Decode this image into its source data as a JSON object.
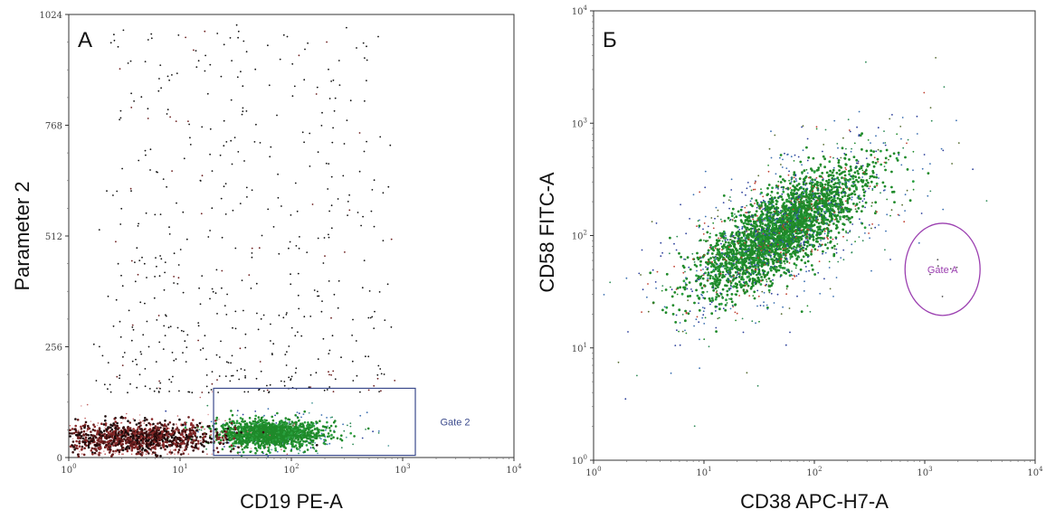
{
  "chart_data": [
    {
      "type": "scatter",
      "panel_label": "A",
      "xlabel": "CD19 PE-A",
      "ylabel": "Parameter 2",
      "x_scale": "log",
      "y_scale": "linear",
      "xlim": [
        1,
        10000
      ],
      "ylim": [
        0,
        1024
      ],
      "x_ticks": [
        {
          "base": "10",
          "exp": "0",
          "value": 1
        },
        {
          "base": "10",
          "exp": "1",
          "value": 10
        },
        {
          "base": "10",
          "exp": "2",
          "value": 100
        },
        {
          "base": "10",
          "exp": "3",
          "value": 1000
        },
        {
          "base": "10",
          "exp": "4",
          "value": 10000
        }
      ],
      "y_ticks": [
        {
          "label": "0",
          "value": 0
        },
        {
          "label": "256",
          "value": 256
        },
        {
          "label": "512",
          "value": 512
        },
        {
          "label": "768",
          "value": 768
        },
        {
          "label": "1024",
          "value": 1024
        }
      ],
      "gates": [
        {
          "name": "Gate 2",
          "shape": "rectangle",
          "x_range": [
            20,
            1300
          ],
          "y_range": [
            5,
            160
          ],
          "color": "#3b4a8c"
        }
      ],
      "populations": [
        {
          "kind": "cluster",
          "x_center": 65,
          "y_center": 55,
          "x_spread": 0.23,
          "y_spread": 15,
          "color": "#1f8a2a",
          "density": "very high"
        },
        {
          "kind": "cluster",
          "x_center": 4,
          "y_center": 45,
          "x_spread": 0.38,
          "y_spread": 18,
          "color": "#6b1e1e",
          "density": "high"
        },
        {
          "kind": "scatter",
          "x_range": [
            2,
            800
          ],
          "y_range": [
            150,
            1000
          ],
          "color": "#111111",
          "density": "sparse"
        }
      ],
      "grid": false
    },
    {
      "type": "scatter",
      "panel_label": "Б",
      "xlabel": "CD38 APC-H7-A",
      "ylabel": "CD58 FITC-A",
      "x_scale": "log",
      "y_scale": "log",
      "xlim": [
        1,
        10000
      ],
      "ylim": [
        1,
        10000
      ],
      "x_ticks": [
        {
          "base": "10",
          "exp": "0",
          "value": 1
        },
        {
          "base": "10",
          "exp": "1",
          "value": 10
        },
        {
          "base": "10",
          "exp": "2",
          "value": 100
        },
        {
          "base": "10",
          "exp": "3",
          "value": 1000
        },
        {
          "base": "10",
          "exp": "4",
          "value": 10000
        }
      ],
      "y_ticks": [
        {
          "base": "10",
          "exp": "0",
          "value": 1
        },
        {
          "base": "10",
          "exp": "1",
          "value": 10
        },
        {
          "base": "10",
          "exp": "2",
          "value": 100
        },
        {
          "base": "10",
          "exp": "3",
          "value": 1000
        },
        {
          "base": "10",
          "exp": "4",
          "value": 10000
        }
      ],
      "gates": [
        {
          "name": "Gate A",
          "shape": "ellipse",
          "x_center": 1450,
          "y_center": 50,
          "x_half_width_decades": 0.34,
          "y_half_height_decades": 0.41,
          "color": "#9b3fb0"
        }
      ],
      "populations": [
        {
          "kind": "cluster",
          "x_center": 50,
          "y_center": 110,
          "orientation": "diagonal",
          "color": "#1f8a2a",
          "density": "very high"
        },
        {
          "kind": "scatter",
          "x_range": [
            2,
            3000
          ],
          "y_range": [
            2.5,
            700
          ],
          "color": "#2a3a8a",
          "density": "sparse halo"
        }
      ],
      "grid": false
    }
  ]
}
